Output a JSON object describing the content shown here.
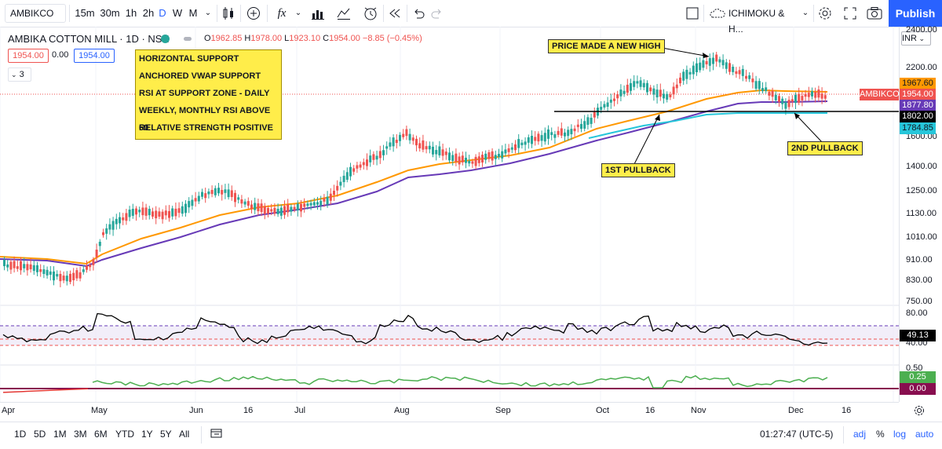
{
  "toolbar": {
    "symbol": "AMBIKCO",
    "intervals": [
      "15m",
      "30m",
      "1h",
      "2h",
      "D",
      "W",
      "M"
    ],
    "active_interval": "D",
    "indicator_label": "ICHIMOKU & H...",
    "publish_label": "Publish",
    "fx_label": "fx"
  },
  "legend": {
    "title": "AMBIKA COTTON MILL · 1D · NSE",
    "open_label": "O",
    "open": "1962.85",
    "high_label": "H",
    "high": "1978.00",
    "low_label": "L",
    "low": "1923.10",
    "close_label": "C",
    "close": "1954.00",
    "change": "−8.85 (−0.45%)",
    "bid": "1954.00",
    "spread": "0.00",
    "ask": "1954.00",
    "collapse": "3"
  },
  "notes": [
    "HORIZONTAL SUPPORT",
    "ANCHORED VWAP SUPPORT",
    "RSI AT SUPPORT ZONE - DAILY",
    "WEEKLY, MONTHLY RSI ABOVE 60",
    "RELATIVE STRENGTH POSITIVE"
  ],
  "callouts": {
    "new_high": "PRICE MADE A NEW HIGH",
    "pullback1": "1ST PULLBACK",
    "pullback2": "2ND PULLBACK"
  },
  "price_axis": {
    "currency": "INR",
    "top_label": "2400.00",
    "ticks": [
      "2200.00",
      "1600.00",
      "1400.00",
      "1250.00",
      "1130.00",
      "1010.00",
      "910.00",
      "830.00",
      "750.00"
    ],
    "tags": {
      "symbol": "AMBIKCO",
      "orange": "1967.60",
      "last": "1954.00",
      "purple": "1877.80",
      "line": "1802.00",
      "teal": "1784.85"
    }
  },
  "rsi_axis": {
    "top": "80.00",
    "value": "49.13",
    "bottom": "40.00"
  },
  "rs_axis": {
    "top": "0.50",
    "value": "0.25",
    "zero": "0.00"
  },
  "time_axis": [
    "Apr",
    "May",
    "Jun",
    "16",
    "Jul",
    "Aug",
    "Sep",
    "Oct",
    "16",
    "Nov",
    "Dec",
    "16"
  ],
  "bottom": {
    "ranges": [
      "1D",
      "5D",
      "1M",
      "3M",
      "6M",
      "YTD",
      "1Y",
      "5Y",
      "All"
    ],
    "clock": "01:27:47 (UTC-5)",
    "adj": "adj",
    "pct": "%",
    "log": "log",
    "auto": "auto"
  },
  "colors": {
    "up": "#26a69a",
    "down": "#ef5350",
    "orange": "#ff9800",
    "purple": "#673ab7",
    "teal": "#26c6da",
    "rsi": "#000000",
    "rs": "#4caf50",
    "rsneg": "#e53935"
  }
}
